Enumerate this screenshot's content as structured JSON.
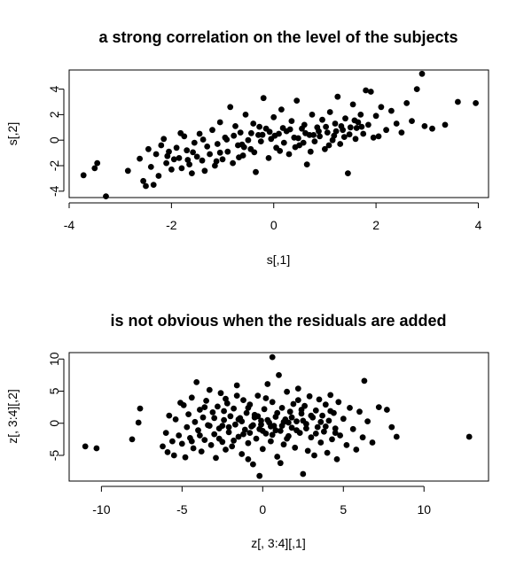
{
  "chart_data": [
    {
      "type": "scatter",
      "title": "a strong correlation on the level of the subjects",
      "xlabel": "s[,1]",
      "ylabel": "s[,2]",
      "xlim": [
        -4.0,
        4.2
      ],
      "ylim": [
        -4.5,
        5.5
      ],
      "xticks": [
        -4,
        -2,
        0,
        2,
        4
      ],
      "yticks": [
        -4,
        -2,
        0,
        2,
        4
      ],
      "xtick_labels": [
        "-4",
        "-2",
        "0",
        "2",
        "4"
      ],
      "ytick_labels": [
        "-4",
        "-2",
        "0",
        "2",
        "4"
      ],
      "grid": false,
      "point_color": "#000000",
      "points": [
        [
          -3.72,
          -2.75
        ],
        [
          -3.5,
          -2.2
        ],
        [
          -3.45,
          -1.8
        ],
        [
          -3.28,
          -4.4
        ],
        [
          -2.85,
          -2.4
        ],
        [
          -2.55,
          -3.2
        ],
        [
          -2.5,
          -3.6
        ],
        [
          -2.45,
          -0.7
        ],
        [
          -2.4,
          -2.1
        ],
        [
          -2.35,
          -3.5
        ],
        [
          -2.3,
          -1.1
        ],
        [
          -2.25,
          -2.8
        ],
        [
          -2.2,
          -0.4
        ],
        [
          -2.15,
          0.1
        ],
        [
          -2.1,
          -1.8
        ],
        [
          -2.05,
          -0.9
        ],
        [
          -2.0,
          -2.3
        ],
        [
          -1.95,
          -1.5
        ],
        [
          -1.9,
          -0.6
        ],
        [
          -1.85,
          -1.4
        ],
        [
          -1.8,
          -2.2
        ],
        [
          -1.75,
          0.3
        ],
        [
          -1.7,
          -0.8
        ],
        [
          -1.65,
          -1.9
        ],
        [
          -1.6,
          -2.6
        ],
        [
          -1.55,
          -0.2
        ],
        [
          -1.5,
          -1.3
        ],
        [
          -1.45,
          0.5
        ],
        [
          -1.4,
          -1.6
        ],
        [
          -1.35,
          -2.4
        ],
        [
          -1.3,
          -0.5
        ],
        [
          -1.25,
          -1.1
        ],
        [
          -1.2,
          0.8
        ],
        [
          -1.15,
          -2.0
        ],
        [
          -1.1,
          -0.3
        ],
        [
          -1.05,
          1.4
        ],
        [
          -1.0,
          -1.5
        ],
        [
          -0.95,
          0.2
        ],
        [
          -0.9,
          -0.9
        ],
        [
          -0.85,
          2.6
        ],
        [
          -0.8,
          -1.8
        ],
        [
          -0.75,
          1.1
        ],
        [
          -0.7,
          -0.4
        ],
        [
          -0.65,
          0.6
        ],
        [
          -0.6,
          -1.2
        ],
        [
          -0.55,
          2.0
        ],
        [
          -0.5,
          0.0
        ],
        [
          -0.45,
          -0.7
        ],
        [
          -0.4,
          1.3
        ],
        [
          -0.35,
          -2.5
        ],
        [
          -0.3,
          0.4
        ],
        [
          -0.25,
          -0.1
        ],
        [
          -0.2,
          3.3
        ],
        [
          -0.15,
          0.9
        ],
        [
          -0.1,
          -1.4
        ],
        [
          -0.05,
          0.1
        ],
        [
          0.0,
          1.8
        ],
        [
          0.05,
          -0.6
        ],
        [
          0.1,
          0.5
        ],
        [
          0.15,
          2.4
        ],
        [
          0.2,
          -0.2
        ],
        [
          0.25,
          0.7
        ],
        [
          0.3,
          -1.1
        ],
        [
          0.35,
          1.5
        ],
        [
          0.4,
          0.2
        ],
        [
          0.45,
          3.1
        ],
        [
          0.5,
          -0.4
        ],
        [
          0.55,
          0.9
        ],
        [
          0.6,
          1.2
        ],
        [
          0.65,
          -1.9
        ],
        [
          0.7,
          0.4
        ],
        [
          0.75,
          2.0
        ],
        [
          0.8,
          -0.1
        ],
        [
          0.85,
          1.0
        ],
        [
          0.9,
          0.3
        ],
        [
          0.95,
          1.6
        ],
        [
          1.0,
          -0.7
        ],
        [
          1.05,
          0.6
        ],
        [
          1.1,
          2.2
        ],
        [
          1.15,
          0.0
        ],
        [
          1.2,
          1.3
        ],
        [
          1.25,
          3.4
        ],
        [
          1.3,
          -0.3
        ],
        [
          1.35,
          0.8
        ],
        [
          1.4,
          1.7
        ],
        [
          1.45,
          -2.6
        ],
        [
          1.5,
          1.0
        ],
        [
          1.55,
          2.8
        ],
        [
          1.6,
          0.1
        ],
        [
          1.65,
          1.4
        ],
        [
          1.7,
          2.0
        ],
        [
          1.75,
          0.5
        ],
        [
          1.8,
          3.9
        ],
        [
          1.85,
          1.2
        ],
        [
          1.9,
          3.8
        ],
        [
          1.95,
          0.2
        ],
        [
          2.0,
          1.9
        ],
        [
          2.1,
          2.6
        ],
        [
          2.2,
          0.8
        ],
        [
          2.3,
          2.3
        ],
        [
          2.4,
          1.3
        ],
        [
          2.5,
          0.6
        ],
        [
          2.6,
          2.9
        ],
        [
          2.7,
          1.5
        ],
        [
          2.8,
          4.0
        ],
        [
          2.9,
          5.2
        ],
        [
          2.95,
          1.1
        ],
        [
          3.1,
          0.9
        ],
        [
          3.35,
          1.2
        ],
        [
          3.6,
          3.0
        ],
        [
          3.95,
          2.9
        ],
        [
          -1.68,
          -1.55
        ],
        [
          -1.05,
          -0.98
        ],
        [
          -0.92,
          0.05
        ],
        [
          -0.62,
          -0.35
        ],
        [
          -0.44,
          0.55
        ],
        [
          -0.22,
          0.42
        ],
        [
          0.02,
          0.35
        ],
        [
          0.12,
          -0.85
        ],
        [
          0.32,
          0.85
        ],
        [
          0.48,
          0.15
        ],
        [
          0.62,
          0.55
        ],
        [
          0.72,
          -0.9
        ],
        [
          0.88,
          0.7
        ],
        [
          1.02,
          1.05
        ],
        [
          1.18,
          0.35
        ],
        [
          1.32,
          1.1
        ],
        [
          1.48,
          0.45
        ],
        [
          1.62,
          0.95
        ],
        [
          -2.62,
          -1.45
        ],
        [
          -1.82,
          0.55
        ],
        [
          -1.38,
          0.05
        ],
        [
          -0.78,
          0.35
        ],
        [
          -0.58,
          -0.55
        ],
        [
          -0.38,
          -0.95
        ],
        [
          0.18,
          0.95
        ],
        [
          0.42,
          -0.55
        ],
        [
          0.58,
          -0.2
        ],
        [
          0.78,
          0.4
        ],
        [
          1.08,
          -0.4
        ],
        [
          1.22,
          0.7
        ],
        [
          1.38,
          0.25
        ],
        [
          1.58,
          1.55
        ],
        [
          1.72,
          1.05
        ],
        [
          2.05,
          0.3
        ],
        [
          -0.28,
          1.05
        ],
        [
          -0.08,
          0.65
        ],
        [
          -1.58,
          -0.95
        ],
        [
          -2.08,
          -1.25
        ],
        [
          -1.12,
          -1.65
        ],
        [
          -0.68,
          -1.35
        ]
      ]
    },
    {
      "type": "scatter",
      "title": "is not obvious when the residuals are added",
      "xlabel": "z[, 3:4][,1]",
      "ylabel": "z[, 3:4][,2]",
      "xlim": [
        -12,
        14
      ],
      "ylim": [
        -9,
        11
      ],
      "xticks": [
        -10,
        -5,
        0,
        5,
        10
      ],
      "yticks": [
        -5,
        0,
        5,
        10
      ],
      "xtick_labels": [
        "-10",
        "-5",
        "0",
        "5",
        "10"
      ],
      "ytick_labels": [
        "-5",
        "0",
        "5",
        "10"
      ],
      "grid": false,
      "point_color": "#000000",
      "points": [
        [
          -11.0,
          -3.6
        ],
        [
          -10.3,
          -3.9
        ],
        [
          -8.1,
          -2.5
        ],
        [
          -7.7,
          0.1
        ],
        [
          -7.6,
          2.3
        ],
        [
          -6.2,
          -3.6
        ],
        [
          -6.0,
          -1.5
        ],
        [
          -5.9,
          -4.5
        ],
        [
          -5.8,
          1.2
        ],
        [
          -5.6,
          -2.8
        ],
        [
          -5.5,
          -5.0
        ],
        [
          -5.4,
          0.6
        ],
        [
          -5.2,
          -1.9
        ],
        [
          -5.1,
          3.2
        ],
        [
          -5.0,
          -3.2
        ],
        [
          -4.9,
          2.8
        ],
        [
          -4.8,
          -5.3
        ],
        [
          -4.7,
          -0.6
        ],
        [
          -4.6,
          1.4
        ],
        [
          -4.5,
          -2.3
        ],
        [
          -4.4,
          4.0
        ],
        [
          -4.3,
          -3.9
        ],
        [
          -4.2,
          0.2
        ],
        [
          -4.1,
          6.4
        ],
        [
          -4.0,
          -1.1
        ],
        [
          -3.9,
          2.1
        ],
        [
          -3.8,
          -4.4
        ],
        [
          -3.7,
          0.9
        ],
        [
          -3.6,
          -2.6
        ],
        [
          -3.5,
          3.5
        ],
        [
          -3.4,
          -0.3
        ],
        [
          -3.3,
          5.2
        ],
        [
          -3.2,
          -3.4
        ],
        [
          -3.1,
          1.7
        ],
        [
          -3.0,
          -1.7
        ],
        [
          -2.9,
          -5.4
        ],
        [
          -2.8,
          2.6
        ],
        [
          -2.7,
          -0.8
        ],
        [
          -2.6,
          4.7
        ],
        [
          -2.5,
          -2.9
        ],
        [
          -2.4,
          0.5
        ],
        [
          -2.3,
          -4.1
        ],
        [
          -2.2,
          3.1
        ],
        [
          -2.1,
          -1.4
        ],
        [
          -2.0,
          1.1
        ],
        [
          -1.9,
          -3.6
        ],
        [
          -1.8,
          2.3
        ],
        [
          -1.7,
          -0.2
        ],
        [
          -1.6,
          5.9
        ],
        [
          -1.5,
          -2.1
        ],
        [
          -1.4,
          0.8
        ],
        [
          -1.3,
          -4.8
        ],
        [
          -1.2,
          3.6
        ],
        [
          -1.1,
          -1.0
        ],
        [
          -1.0,
          1.6
        ],
        [
          -0.9,
          -3.1
        ],
        [
          -0.8,
          2.9
        ],
        [
          -0.7,
          -0.5
        ],
        [
          -0.6,
          -6.4
        ],
        [
          -0.5,
          1.3
        ],
        [
          -0.4,
          -2.4
        ],
        [
          -0.3,
          4.3
        ],
        [
          -0.2,
          -0.9
        ],
        [
          -0.1,
          0.4
        ],
        [
          0.0,
          -4.0
        ],
        [
          0.1,
          2.2
        ],
        [
          0.2,
          -1.6
        ],
        [
          0.3,
          6.1
        ],
        [
          0.4,
          0.1
        ],
        [
          0.5,
          -2.8
        ],
        [
          0.6,
          3.3
        ],
        [
          0.7,
          -0.4
        ],
        [
          0.8,
          1.0
        ],
        [
          0.9,
          -5.2
        ],
        [
          1.0,
          7.5
        ],
        [
          1.1,
          -1.2
        ],
        [
          1.2,
          2.4
        ],
        [
          1.3,
          -3.3
        ],
        [
          1.4,
          0.6
        ],
        [
          1.5,
          4.9
        ],
        [
          1.6,
          -2.0
        ],
        [
          1.7,
          1.8
        ],
        [
          1.8,
          -0.7
        ],
        [
          1.9,
          3.0
        ],
        [
          2.0,
          -3.8
        ],
        [
          2.1,
          0.3
        ],
        [
          2.2,
          5.4
        ],
        [
          2.3,
          -1.5
        ],
        [
          2.4,
          1.5
        ],
        [
          2.5,
          -7.9
        ],
        [
          2.6,
          2.7
        ],
        [
          2.7,
          -0.1
        ],
        [
          2.8,
          -4.3
        ],
        [
          2.9,
          4.2
        ],
        [
          3.0,
          -2.2
        ],
        [
          3.1,
          0.9
        ],
        [
          3.2,
          -5.0
        ],
        [
          3.3,
          2.0
        ],
        [
          3.4,
          -0.6
        ],
        [
          3.5,
          3.7
        ],
        [
          3.6,
          -3.0
        ],
        [
          3.7,
          1.2
        ],
        [
          3.8,
          -1.3
        ],
        [
          3.9,
          2.9
        ],
        [
          4.0,
          -4.6
        ],
        [
          4.1,
          0.4
        ],
        [
          4.2,
          4.4
        ],
        [
          4.3,
          -2.5
        ],
        [
          4.4,
          1.6
        ],
        [
          4.5,
          -0.8
        ],
        [
          4.6,
          -5.6
        ],
        [
          4.7,
          3.3
        ],
        [
          4.8,
          -1.9
        ],
        [
          5.0,
          0.7
        ],
        [
          5.2,
          -3.4
        ],
        [
          5.4,
          2.4
        ],
        [
          5.6,
          -0.9
        ],
        [
          5.8,
          -4.1
        ],
        [
          6.0,
          1.8
        ],
        [
          6.2,
          -2.2
        ],
        [
          6.3,
          6.6
        ],
        [
          6.5,
          0.3
        ],
        [
          6.8,
          -3.0
        ],
        [
          7.2,
          2.5
        ],
        [
          7.7,
          2.1
        ],
        [
          8.0,
          -0.6
        ],
        [
          8.3,
          -2.1
        ],
        [
          12.8,
          -2.1
        ],
        [
          0.6,
          10.3
        ],
        [
          -0.2,
          -8.2
        ],
        [
          -3.9,
          -1.9
        ],
        [
          -3.6,
          2.5
        ],
        [
          -3.3,
          -0.4
        ],
        [
          -3.0,
          0.8
        ],
        [
          -2.7,
          -2.4
        ],
        [
          -2.4,
          1.9
        ],
        [
          -2.1,
          -0.6
        ],
        [
          -1.8,
          -2.7
        ],
        [
          -1.5,
          0.6
        ],
        [
          -1.2,
          -1.7
        ],
        [
          -0.9,
          2.4
        ],
        [
          -0.6,
          -0.3
        ],
        [
          -0.3,
          1.1
        ],
        [
          0.0,
          -1.2
        ],
        [
          0.3,
          0.5
        ],
        [
          0.6,
          -1.8
        ],
        [
          0.9,
          1.6
        ],
        [
          1.2,
          -0.4
        ],
        [
          1.5,
          -2.4
        ],
        [
          1.8,
          0.9
        ],
        [
          2.1,
          -1.1
        ],
        [
          2.4,
          2.1
        ],
        [
          2.7,
          -0.8
        ],
        [
          3.0,
          1.2
        ],
        [
          3.3,
          -1.6
        ],
        [
          3.6,
          0.2
        ],
        [
          3.9,
          -0.5
        ],
        [
          4.2,
          1.9
        ],
        [
          4.5,
          -1.5
        ],
        [
          -2.3,
          3.8
        ],
        [
          -0.9,
          -5.6
        ],
        [
          1.1,
          -6.2
        ],
        [
          0.2,
          3.9
        ],
        [
          -1.6,
          4.3
        ],
        [
          2.2,
          3.6
        ],
        [
          -4.4,
          -2.8
        ],
        [
          -0.5,
          0.9
        ],
        [
          0.5,
          -0.5
        ],
        [
          1.3,
          0.2
        ],
        [
          -1.3,
          0.3
        ],
        [
          -0.1,
          -0.2
        ],
        [
          0.8,
          -1.1
        ],
        [
          -0.8,
          -1.5
        ],
        [
          1.6,
          0.1
        ],
        [
          -2.5,
          -0.4
        ],
        [
          2.5,
          0.4
        ]
      ]
    }
  ]
}
